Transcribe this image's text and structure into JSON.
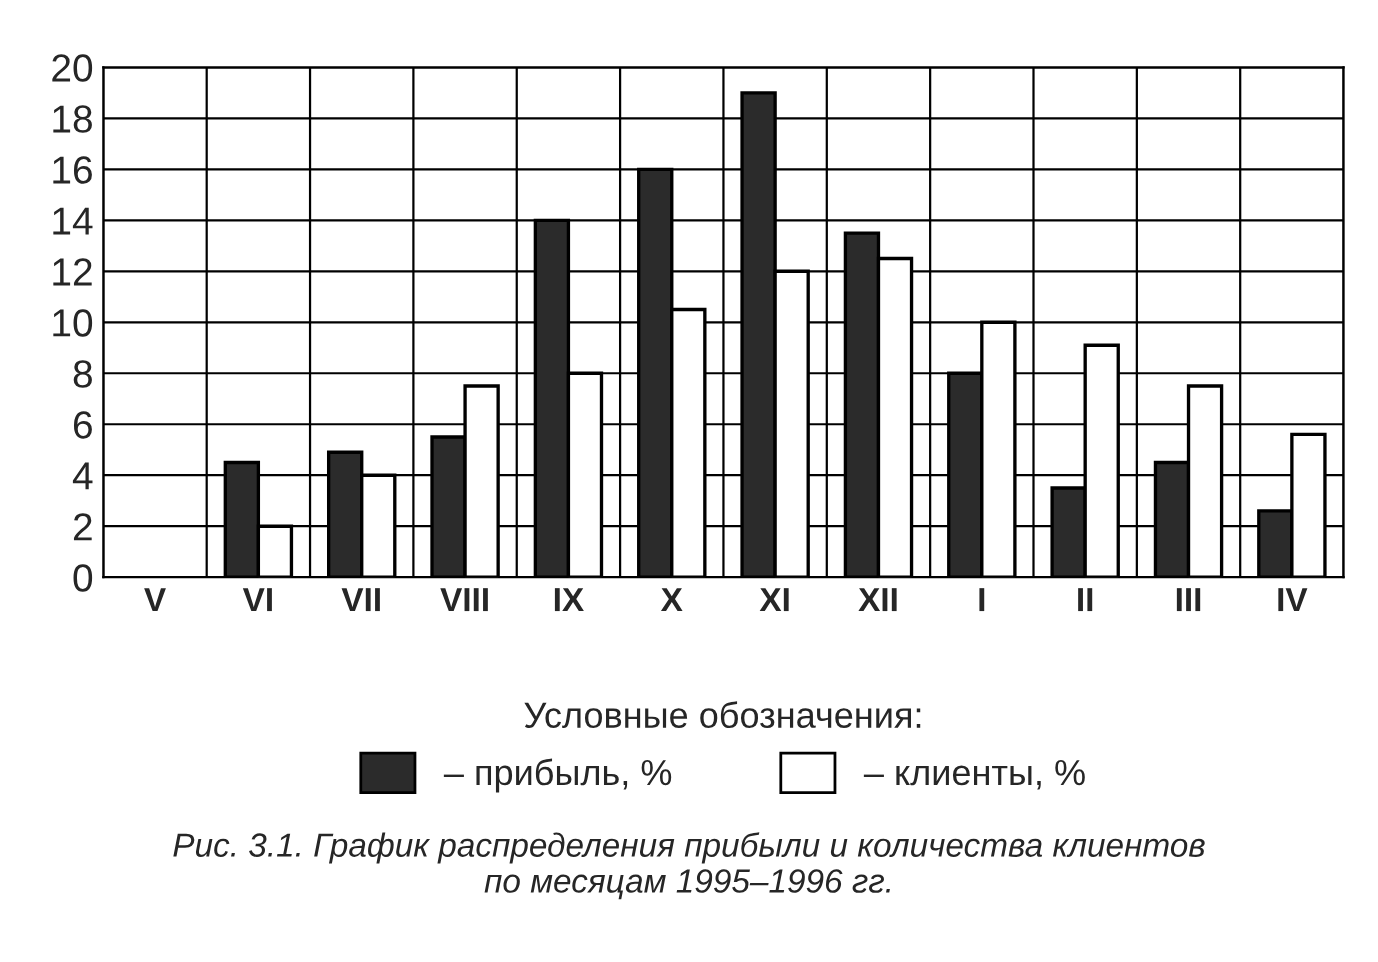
{
  "chart_data": {
    "type": "bar",
    "categories": [
      "V",
      "VI",
      "VII",
      "VIII",
      "IX",
      "X",
      "XI",
      "XII",
      "I",
      "II",
      "III",
      "IV"
    ],
    "series": [
      {
        "name": "– прибыль, %",
        "color": "#2b2b2b",
        "values": [
          null,
          4.5,
          4.9,
          5.5,
          14,
          16,
          19,
          13.5,
          8,
          3.5,
          4.5,
          2.6
        ]
      },
      {
        "name": "– клиенты, %",
        "color": "#ffffff",
        "values": [
          null,
          2,
          4,
          7.5,
          8,
          10.5,
          12,
          12.5,
          10,
          9.1,
          7.5,
          5.6
        ]
      }
    ],
    "ylim": [
      0,
      20
    ],
    "yticks": [
      0,
      2,
      4,
      6,
      8,
      10,
      12,
      14,
      16,
      18,
      20
    ],
    "grid": true,
    "legend": "bottom",
    "legend_title": "Условные обозначения:",
    "annotations": [
      "Рис. 3.1. График распределения прибыли и количества клиентов\nпо месяцам 1995–1996 гг."
    ]
  }
}
